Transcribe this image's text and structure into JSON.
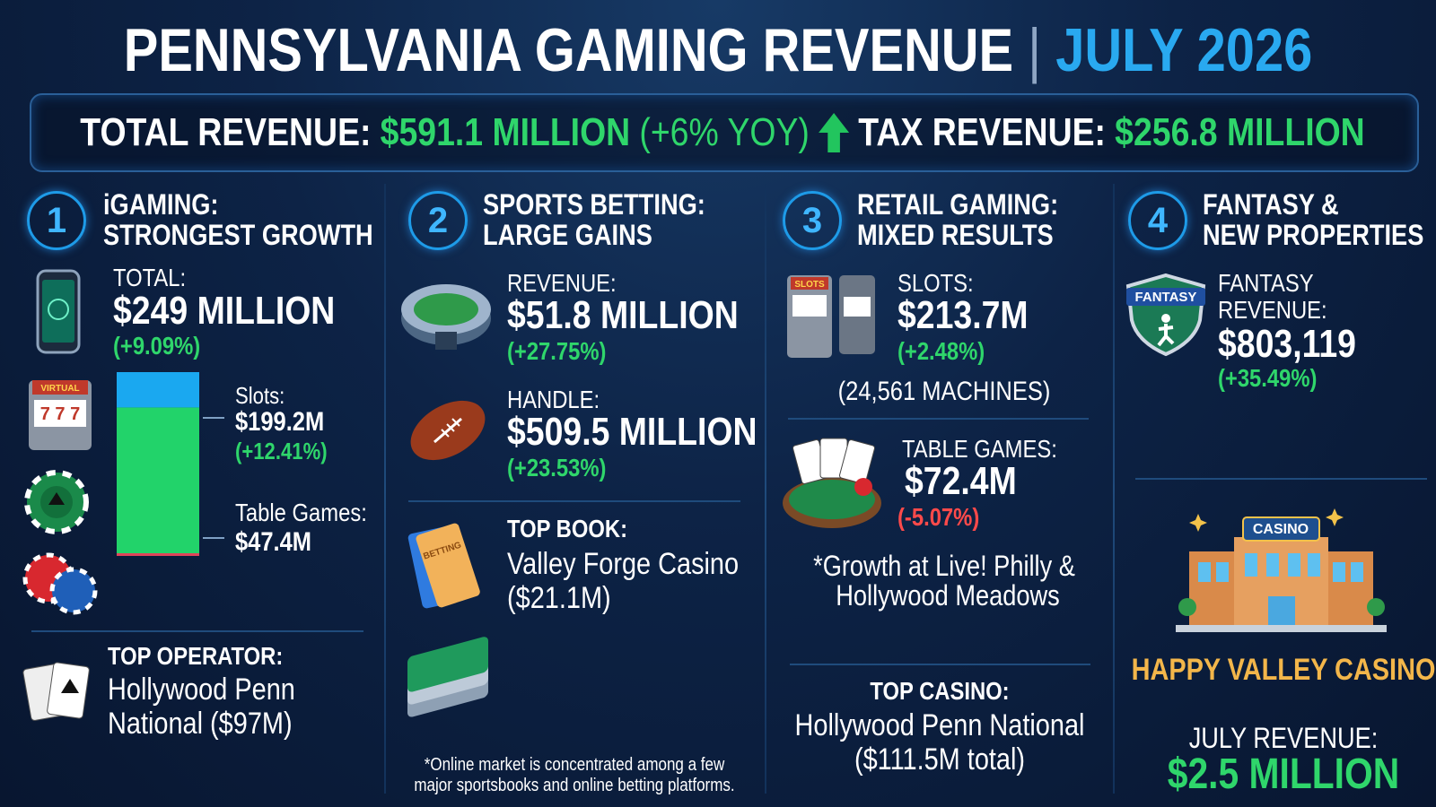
{
  "header": {
    "title": "PENNSYLVANIA GAMING REVENUE",
    "separator": "|",
    "period": "JULY 2026"
  },
  "summary": {
    "total_label": "TOTAL REVENUE:",
    "total_value": "$591.1 MILLION",
    "total_change": "(+6% YOY)",
    "tax_label": "TAX REVENUE:",
    "tax_value": "$256.8 MILLION"
  },
  "sections": [
    {
      "number": "1",
      "title_lines": [
        "iGAMING:",
        "STRONGEST GROWTH"
      ],
      "total_label": "TOTAL:",
      "total_value": "$249 MILLION",
      "total_change": "(+9.09%)",
      "breakdown": [
        {
          "label": "Slots:",
          "value": 199.2,
          "value_label": "$199.2M",
          "change": "(+12.41%)",
          "color": "#22d36a"
        },
        {
          "label": "Table Games:",
          "value": 47.4,
          "value_label": "$47.4M",
          "color": "#1aa8f0"
        }
      ],
      "top_label": "TOP OPERATOR:",
      "top_lines": [
        "Hollywood Penn",
        "National ($97M)"
      ]
    },
    {
      "number": "2",
      "title_lines": [
        "SPORTS BETTING:",
        "LARGE GAINS"
      ],
      "metrics": [
        {
          "label": "REVENUE:",
          "value": "$51.8 MILLION",
          "change": "(+27.75%)"
        },
        {
          "label": "HANDLE:",
          "value": "$509.5 MILLION",
          "change": "(+23.53%)"
        }
      ],
      "top_label": "TOP BOOK:",
      "top_lines": [
        "Valley Forge Casino",
        "($21.1M)"
      ],
      "footnote_lines": [
        "*Online market is concentrated among a few",
        "major sportsbooks and online betting platforms."
      ]
    },
    {
      "number": "3",
      "title_lines": [
        "RETAIL GAMING:",
        "MIXED RESULTS"
      ],
      "metrics": [
        {
          "label": "SLOTS:",
          "value": "$213.7M",
          "change": "(+2.48%)",
          "note": "(24,561 MACHINES)"
        },
        {
          "label": "TABLE GAMES:",
          "value": "$72.4M",
          "change": "(-5.07%)"
        }
      ],
      "note_lines": [
        "*Growth at Live! Philly &",
        "Hollywood Meadows"
      ],
      "top_label": "TOP CASINO:",
      "top_lines": [
        "Hollywood Penn National",
        "($111.5M total)"
      ]
    },
    {
      "number": "4",
      "title_lines": [
        "FANTASY &",
        "NEW PROPERTIES"
      ],
      "metric_label_lines": [
        "FANTASY",
        "REVENUE:"
      ],
      "metric_value": "$803,119",
      "metric_change": "(+35.49%)",
      "property": "HAPPY VALLEY CASINO",
      "revenue_label": "JULY REVENUE:",
      "revenue_value": "$2.5 MILLION"
    }
  ],
  "icons": {
    "slot_machine": "VIRTUAL",
    "fantasy_badge": "FANTASY",
    "casino_sign": "CASINO",
    "slots_sign": "SLOTS",
    "ticket": "BETTING"
  }
}
